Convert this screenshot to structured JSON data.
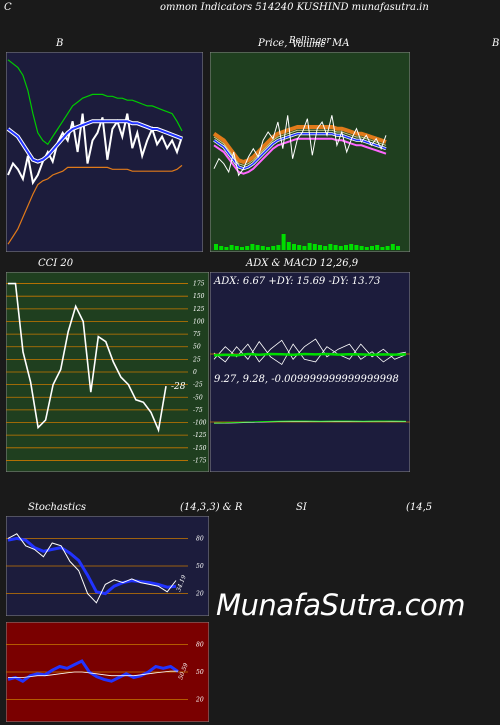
{
  "header": {
    "left": "C",
    "title": "ommon  Indicators 514240  KUSHIND munafasutra.in"
  },
  "panels": {
    "bollinger": {
      "label": "B"
    },
    "price": {
      "label_1": "Price,",
      "label_2": "Volume",
      "label_3": "MA",
      "label_4": "Bollinger"
    },
    "right_edge": {
      "label": "B"
    },
    "cci": {
      "label": "CCI 20",
      "last_value": "-28",
      "ticks": [
        "175",
        "150",
        "125",
        "100",
        "75",
        "50",
        "25",
        "0",
        "-25",
        "-50",
        "-75",
        "-100",
        "-125",
        "-150",
        "-175"
      ]
    },
    "adx": {
      "label": "ADX  & MACD 12,26,9",
      "readout": "ADX: 6.67 +DY: 15.69 -DY: 13.73",
      "macd_readout": "9.27,  9.28,  -0.009999999999999998"
    },
    "stoch": {
      "label": "Stochastics",
      "params": "(14,3,3) & R",
      "last_value": "34.19",
      "ticks": [
        "80",
        "50",
        "20"
      ]
    },
    "rsi": {
      "label": "SI",
      "params": "(14,5",
      "last_value": "50.59",
      "ticks": [
        "80",
        "50",
        "20"
      ]
    }
  },
  "watermark": "MunafaSutra.com",
  "colors": {
    "navy": "#1c1c3c",
    "green_panel": "#1f3f1f",
    "rsi_panel": "#7a0000",
    "blue": "#2233ff",
    "orange": "#e07a1a",
    "lime": "#00dd00"
  },
  "chart_data": [
    {
      "type": "line",
      "name": "bollinger",
      "series": [
        {
          "name": "price",
          "values": [
            38,
            44,
            41,
            36,
            48,
            34,
            38,
            45,
            50,
            45,
            55,
            60,
            56,
            66,
            50,
            70,
            44,
            56,
            60,
            68,
            46,
            62,
            66,
            58,
            70,
            52,
            60,
            48,
            56,
            62,
            54,
            58,
            52,
            56,
            50,
            58
          ]
        },
        {
          "name": "upper",
          "values": [
            98,
            96,
            94,
            90,
            82,
            70,
            60,
            56,
            54,
            58,
            62,
            66,
            70,
            74,
            76,
            78,
            79,
            80,
            80,
            80,
            79,
            79,
            78,
            78,
            77,
            77,
            76,
            75,
            74,
            74,
            73,
            72,
            71,
            70,
            66,
            61
          ]
        },
        {
          "name": "middle",
          "values": [
            62,
            60,
            58,
            54,
            50,
            46,
            45,
            46,
            48,
            51,
            54,
            57,
            60,
            62,
            63,
            64,
            65,
            66,
            66,
            66,
            66,
            66,
            66,
            66,
            66,
            65,
            65,
            64,
            63,
            62,
            62,
            61,
            60,
            59,
            58,
            57
          ]
        },
        {
          "name": "lower",
          "values": [
            2,
            6,
            10,
            16,
            22,
            28,
            33,
            35,
            36,
            38,
            39,
            40,
            42,
            42,
            42,
            42,
            42,
            42,
            42,
            42,
            42,
            41,
            41,
            41,
            41,
            40,
            40,
            40,
            40,
            40,
            40,
            40,
            40,
            40,
            41,
            43
          ]
        }
      ],
      "ylim": [
        0,
        100
      ]
    },
    {
      "type": "line",
      "name": "cci",
      "ylim": [
        -175,
        175
      ],
      "values": [
        175,
        175,
        40,
        -20,
        -110,
        -95,
        -25,
        5,
        80,
        130,
        100,
        -40,
        70,
        60,
        20,
        -10,
        -25,
        -55,
        -60,
        -80,
        -115,
        -28
      ]
    },
    {
      "type": "line",
      "name": "adx",
      "series": [
        {
          "name": "adx",
          "values": [
            6,
            6.5,
            6,
            7,
            6.5,
            7,
            6.8,
            6.5,
            7,
            6.7,
            7,
            6.6,
            6.8,
            6.7,
            6.5,
            6.7,
            6.6,
            6.7
          ]
        },
        {
          "name": "plus_dy",
          "values": [
            10,
            20,
            12,
            22,
            8,
            18,
            25,
            10,
            20,
            26,
            12,
            18,
            22,
            10,
            16,
            8,
            14,
            15.69
          ]
        },
        {
          "name": "minus_dy",
          "values": [
            15,
            8,
            20,
            10,
            24,
            12,
            6,
            22,
            10,
            8,
            20,
            14,
            10,
            22,
            12,
            18,
            10,
            13.73
          ]
        }
      ]
    },
    {
      "type": "line",
      "name": "macd",
      "values": [
        9.2,
        9.22,
        9.25,
        9.27,
        9.28,
        9.27,
        9.28,
        9.27,
        9.28,
        9.27
      ]
    },
    {
      "type": "line",
      "name": "stochastics",
      "ylim": [
        0,
        100
      ],
      "series": [
        {
          "name": "k",
          "values": [
            80,
            85,
            72,
            68,
            60,
            75,
            72,
            55,
            45,
            20,
            10,
            30,
            35,
            32,
            36,
            32,
            30,
            28,
            22,
            34.19
          ]
        },
        {
          "name": "d",
          "values": [
            78,
            80,
            78,
            70,
            66,
            68,
            70,
            64,
            56,
            40,
            22,
            20,
            28,
            32,
            34,
            33,
            32,
            30,
            27,
            28
          ]
        }
      ]
    },
    {
      "type": "line",
      "name": "rsi",
      "ylim": [
        0,
        100
      ],
      "series": [
        {
          "name": "rsi",
          "values": [
            42,
            44,
            40,
            46,
            48,
            47,
            52,
            56,
            54,
            58,
            62,
            50,
            45,
            42,
            40,
            44,
            48,
            44,
            46,
            50,
            56,
            54,
            56,
            50.59
          ]
        },
        {
          "name": "signal",
          "values": [
            44,
            44,
            44,
            45,
            46,
            46,
            47,
            48,
            49,
            50,
            50,
            49,
            48,
            47,
            46,
            46,
            46,
            46,
            47,
            48,
            49,
            50,
            51,
            51
          ]
        }
      ]
    }
  ]
}
